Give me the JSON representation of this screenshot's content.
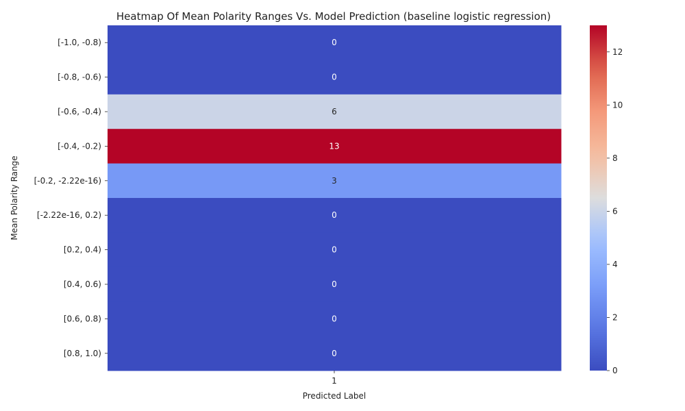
{
  "chart_data": {
    "type": "heatmap",
    "title": "Heatmap Of Mean Polarity Ranges Vs. Model Prediction (baseline logistic regression)",
    "xlabel": "Predicted Label",
    "ylabel": "Mean Polarity Range",
    "x_categories": [
      "1"
    ],
    "y_categories": [
      "[-1.0, -0.8)",
      "[-0.8, -0.6)",
      "[-0.6, -0.4)",
      "[-0.4, -0.2)",
      "[-0.2, -2.22e-16)",
      "[-2.22e-16, 0.2)",
      "[0.2, 0.4)",
      "[0.4, 0.6)",
      "[0.6, 0.8)",
      "[0.8, 1.0)"
    ],
    "values": [
      [
        0
      ],
      [
        0
      ],
      [
        6
      ],
      [
        13
      ],
      [
        3
      ],
      [
        0
      ],
      [
        0
      ],
      [
        0
      ],
      [
        0
      ],
      [
        0
      ]
    ],
    "colormap": "coolwarm",
    "vmin": 0,
    "vmax": 13,
    "colorbar_ticks": [
      0,
      2,
      4,
      6,
      8,
      10,
      12
    ],
    "annotate": true,
    "grid": false
  }
}
